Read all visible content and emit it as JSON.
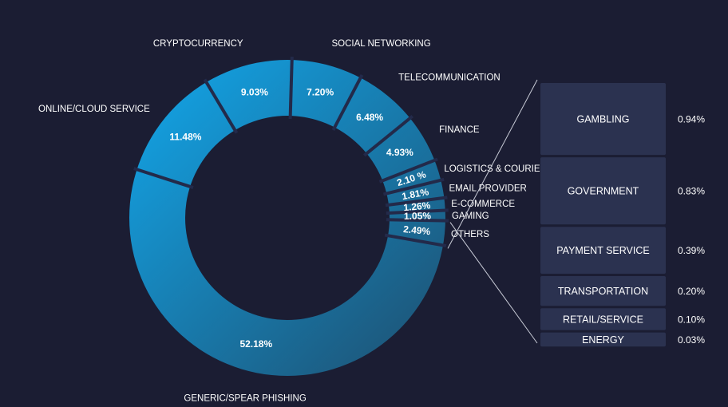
{
  "chart_data": {
    "type": "donut",
    "slices": [
      {
        "label": "GENERIC/SPEAR PHISHING",
        "value": 52.18,
        "value_label": "52.18%"
      },
      {
        "label": "ONLINE/CLOUD SERVICE",
        "value": 11.48,
        "value_label": "11.48%"
      },
      {
        "label": "CRYPTOCURRENCY",
        "value": 9.03,
        "value_label": "9.03%"
      },
      {
        "label": "SOCIAL NETWORKING",
        "value": 7.2,
        "value_label": "7.20%"
      },
      {
        "label": "TELECOMMUNICATION",
        "value": 6.48,
        "value_label": "6.48%"
      },
      {
        "label": "FINANCE",
        "value": 4.93,
        "value_label": "4.93%"
      },
      {
        "label": "LOGISTICS & COURIERS",
        "value": 2.1,
        "value_label": "2.10 %"
      },
      {
        "label": "EMAIL PROVIDER",
        "value": 1.81,
        "value_label": "1.81%"
      },
      {
        "label": "E-COMMERCE",
        "value": 1.26,
        "value_label": "1.26%"
      },
      {
        "label": "GAMING",
        "value": 1.05,
        "value_label": "1.05%"
      },
      {
        "label": "OTHERS",
        "value": 2.49,
        "value_label": "2.49%"
      }
    ],
    "others_breakdown": [
      {
        "label": "GAMBLING",
        "value": 0.94,
        "value_label": "0.94%"
      },
      {
        "label": "GOVERNMENT",
        "value": 0.83,
        "value_label": "0.83%"
      },
      {
        "label": "PAYMENT SERVICE",
        "value": 0.39,
        "value_label": "0.39%"
      },
      {
        "label": "TRANSPORTATION",
        "value": 0.2,
        "value_label": "0.20%"
      },
      {
        "label": "RETAIL/SERVICE",
        "value": 0.1,
        "value_label": "0.10%"
      },
      {
        "label": "ENERGY",
        "value": 0.03,
        "value_label": "0.03%"
      }
    ],
    "colors": {
      "background": "#1b1d33",
      "ring_light": "#12a8ec",
      "ring_dark": "#1e4e6e",
      "separator": "#232a4a",
      "box_fill": "#2b3250",
      "connector": "#c8cbd6"
    }
  }
}
